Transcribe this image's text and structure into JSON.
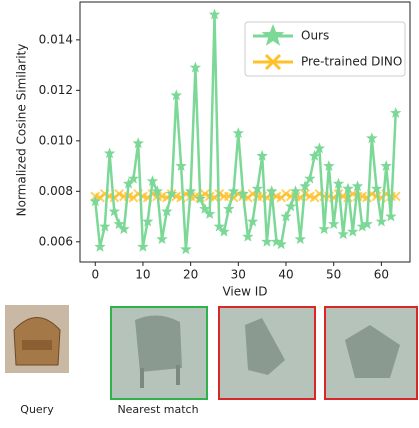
{
  "chart_data": {
    "type": "line",
    "y_label": "Normalized Cosine Similarity",
    "x_label": "View ID",
    "x": [
      0,
      1,
      2,
      3,
      4,
      5,
      6,
      7,
      8,
      9,
      10,
      11,
      12,
      13,
      14,
      15,
      16,
      17,
      18,
      19,
      20,
      21,
      22,
      23,
      24,
      25,
      26,
      27,
      28,
      29,
      30,
      31,
      32,
      33,
      34,
      35,
      36,
      37,
      38,
      39,
      40,
      41,
      42,
      43,
      44,
      45,
      46,
      47,
      48,
      49,
      50,
      51,
      52,
      53,
      54,
      55,
      56,
      57,
      58,
      59,
      60,
      61,
      62,
      63
    ],
    "series": [
      {
        "name": "Ours",
        "color": "#7cd896",
        "marker": "star",
        "values": [
          0.0076,
          0.0058,
          0.0066,
          0.0095,
          0.0072,
          0.0067,
          0.0065,
          0.0083,
          0.0085,
          0.0099,
          0.0058,
          0.0068,
          0.0084,
          0.008,
          0.0061,
          0.0072,
          0.0079,
          0.0118,
          0.009,
          0.0057,
          0.008,
          0.0129,
          0.0077,
          0.0073,
          0.0071,
          0.015,
          0.0066,
          0.0064,
          0.0073,
          0.008,
          0.0103,
          0.0079,
          0.0062,
          0.0068,
          0.0081,
          0.0094,
          0.006,
          0.008,
          0.006,
          0.0059,
          0.007,
          0.0074,
          0.008,
          0.0061,
          0.0082,
          0.0085,
          0.0094,
          0.0097,
          0.0065,
          0.009,
          0.0067,
          0.0083,
          0.0063,
          0.0081,
          0.0064,
          0.0082,
          0.0066,
          0.0067,
          0.0101,
          0.0081,
          0.0068,
          0.009,
          0.007,
          0.0111
        ]
      },
      {
        "name": "Pre-trained DINO",
        "color": "#ffc02a",
        "marker": "x",
        "values": [
          0.0078,
          0.00775,
          0.0079,
          0.0078,
          0.00775,
          0.0079,
          0.0078,
          0.0078,
          0.00775,
          0.0079,
          0.0078,
          0.00775,
          0.0079,
          0.0078,
          0.0078,
          0.00775,
          0.0079,
          0.0078,
          0.00775,
          0.0079,
          0.0078,
          0.0078,
          0.00775,
          0.0079,
          0.0078,
          0.00775,
          0.0079,
          0.0078,
          0.0078,
          0.00775,
          0.0079,
          0.0078,
          0.00775,
          0.0079,
          0.0078,
          0.0078,
          0.00775,
          0.0079,
          0.0078,
          0.00775,
          0.0079,
          0.0078,
          0.0078,
          0.00775,
          0.0079,
          0.0078,
          0.00775,
          0.0079,
          0.0078,
          0.0078,
          0.00775,
          0.0079,
          0.0078,
          0.00775,
          0.0079,
          0.0078,
          0.0078,
          0.00775,
          0.0079,
          0.0078,
          0.00775,
          0.0079,
          0.0078,
          0.0078
        ]
      }
    ],
    "xlim": [
      -3.2,
      66
    ],
    "ylim": [
      0.0052,
      0.0155
    ],
    "xticks": [
      0,
      10,
      20,
      30,
      40,
      50,
      60
    ],
    "yticks": [
      0.006,
      0.008,
      {
        "value": 0.01,
        "label": "0.010"
      },
      0.012,
      0.014
    ],
    "legend": "upper right"
  },
  "captions": [
    "Query",
    "Nearest match"
  ]
}
